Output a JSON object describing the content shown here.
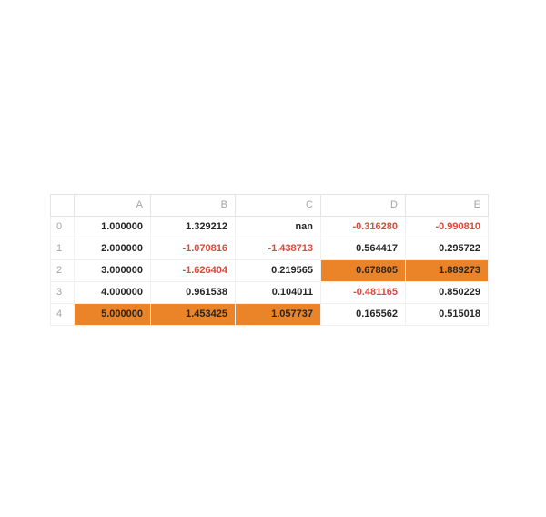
{
  "chart_data": {
    "type": "table",
    "title": "",
    "columns": [
      "A",
      "B",
      "C",
      "D",
      "E"
    ],
    "index": [
      "0",
      "1",
      "2",
      "3",
      "4"
    ],
    "rows": [
      [
        "1.000000",
        "1.329212",
        "nan",
        "-0.316280",
        "-0.990810"
      ],
      [
        "2.000000",
        "-1.070816",
        "-1.438713",
        "0.564417",
        "0.295722"
      ],
      [
        "3.000000",
        "-1.626404",
        "0.219565",
        "0.678805",
        "1.889273"
      ],
      [
        "4.000000",
        "0.961538",
        "0.104011",
        "-0.481165",
        "0.850229"
      ],
      [
        "5.000000",
        "1.453425",
        "1.057737",
        "0.165562",
        "0.515018"
      ]
    ],
    "cell_styles": [
      [
        "",
        "",
        "",
        "neg",
        "neg"
      ],
      [
        "",
        "neg",
        "neg",
        "",
        ""
      ],
      [
        "",
        "neg",
        "",
        "max",
        "max"
      ],
      [
        "",
        "",
        "",
        "neg",
        ""
      ],
      [
        "max",
        "max",
        "max",
        "",
        ""
      ]
    ],
    "style_legend": {
      "neg": "negative value shown in red text",
      "max": "column maximum highlighted with orange background"
    },
    "corner_label": ""
  },
  "colors": {
    "background": "#ffffff",
    "negative_text": "#e0463c",
    "highlight_bg": "#eb8428",
    "header_text": "#a3a3a3",
    "body_text": "#262626",
    "border_header": "#e4e4e4",
    "border_body": "#f0f0f0"
  }
}
